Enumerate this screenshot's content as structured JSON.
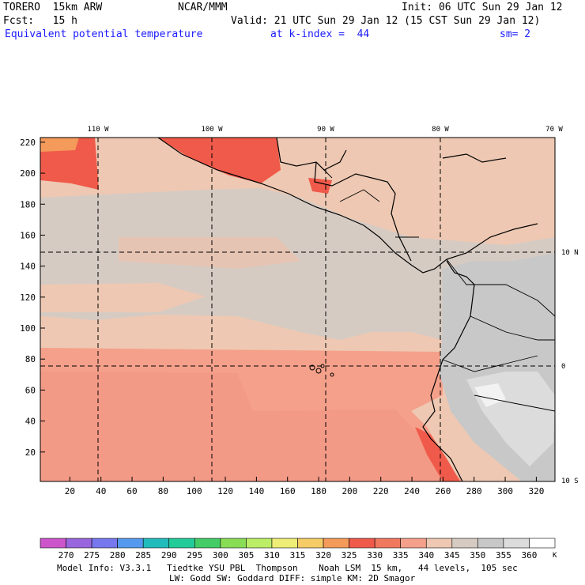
{
  "header": {
    "model": "TORERO  15km ARW",
    "center": "NCAR/MMM",
    "init": "Init: 06 UTC Sun 29 Jan 12",
    "fcst_label": "Fcst:   15 h",
    "valid": "Valid: 21 UTC Sun 29 Jan 12 (15 CST Sun 29 Jan 12)",
    "field": "Equivalent potential temperature",
    "level": "at k-index =  44",
    "smooth": "sm= 2"
  },
  "map": {
    "x_ticks": [
      "20",
      "40",
      "60",
      "80",
      "100",
      "120",
      "140",
      "160",
      "180",
      "200",
      "220",
      "240",
      "260",
      "280",
      "300",
      "320"
    ],
    "y_ticks": [
      "20",
      "40",
      "60",
      "80",
      "100",
      "120",
      "140",
      "160",
      "180",
      "200",
      "220"
    ],
    "lon_labels": [
      "110 W",
      "100 W",
      "90 W",
      "80 W",
      "70 W"
    ],
    "lat_labels": [
      "10 N",
      "0",
      "10 S"
    ]
  },
  "colorbar": {
    "ticks": [
      "270",
      "275",
      "280",
      "285",
      "290",
      "295",
      "300",
      "305",
      "310",
      "315",
      "320",
      "325",
      "330",
      "335",
      "340",
      "345",
      "350",
      "355",
      "360"
    ],
    "unit": "K",
    "colors": [
      "#cc55cc",
      "#9966dd",
      "#7777ee",
      "#5599ee",
      "#22bbbb",
      "#22cc99",
      "#44cc66",
      "#88dd55",
      "#bbee66",
      "#eeee77",
      "#f6cc66",
      "#f49a5a",
      "#f05a4a",
      "#f0785e",
      "#f5a08a",
      "#eec8b2",
      "#d6cbc3",
      "#c8c8c8",
      "#dcdcdc",
      "#ffffff"
    ]
  },
  "footer": {
    "line1": "Model Info: V3.3.1   Tiedtke YSU PBL  Thompson    Noah LSM  15 km,   44 levels,  105 sec",
    "line2": "LW: Godd SW: Goddard DIFF: simple KM: 2D Smagor"
  }
}
